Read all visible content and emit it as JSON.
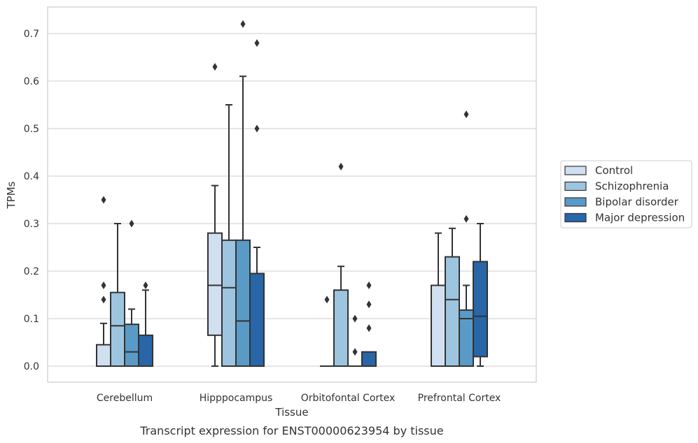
{
  "chart_data": {
    "type": "box",
    "caption": "Transcript expression for ENST00000623954 by tissue",
    "xlabel": "Tissue",
    "ylabel": "TPMs",
    "ylim": [
      -0.035,
      0.76
    ],
    "yticks": [
      0.0,
      0.1,
      0.2,
      0.3,
      0.4,
      0.5,
      0.6,
      0.7
    ],
    "ytick_labels": [
      "0.0",
      "0.1",
      "0.2",
      "0.3",
      "0.4",
      "0.5",
      "0.6",
      "0.7"
    ],
    "grid": "horizontal",
    "legend_position": "outside-right",
    "categories": [
      "Cerebellum",
      "Hipppocampus",
      "Orbitofontal Cortex",
      "Prefrontal Cortex"
    ],
    "series": [
      {
        "name": "Control",
        "color": "#d0e0f0",
        "boxes": [
          {
            "min": 0.0,
            "q1": 0.0,
            "median": 0.0,
            "q3": 0.045,
            "max": 0.09,
            "outliers": [
              0.14,
              0.17,
              0.35
            ]
          },
          {
            "min": 0.0,
            "q1": 0.065,
            "median": 0.17,
            "q3": 0.28,
            "max": 0.38,
            "outliers": [
              0.63
            ]
          },
          {
            "min": 0.0,
            "q1": 0.0,
            "median": 0.0,
            "q3": 0.0,
            "max": 0.0,
            "outliers": [
              0.14
            ]
          },
          {
            "min": 0.0,
            "q1": 0.0,
            "median": 0.0,
            "q3": 0.17,
            "max": 0.28,
            "outliers": []
          }
        ]
      },
      {
        "name": "Schizophrenia",
        "color": "#9dc5df",
        "boxes": [
          {
            "min": 0.0,
            "q1": 0.0,
            "median": 0.085,
            "q3": 0.155,
            "max": 0.3,
            "outliers": []
          },
          {
            "min": 0.0,
            "q1": 0.0,
            "median": 0.165,
            "q3": 0.265,
            "max": 0.55,
            "outliers": []
          },
          {
            "min": 0.0,
            "q1": 0.0,
            "median": 0.0,
            "q3": 0.16,
            "max": 0.21,
            "outliers": [
              0.42
            ]
          },
          {
            "min": 0.0,
            "q1": 0.0,
            "median": 0.14,
            "q3": 0.23,
            "max": 0.29,
            "outliers": []
          }
        ]
      },
      {
        "name": "Bipolar disorder",
        "color": "#5a9ac6",
        "boxes": [
          {
            "min": 0.0,
            "q1": 0.0,
            "median": 0.03,
            "q3": 0.088,
            "max": 0.12,
            "outliers": [
              0.3
            ]
          },
          {
            "min": 0.0,
            "q1": 0.0,
            "median": 0.095,
            "q3": 0.265,
            "max": 0.61,
            "outliers": [
              0.72
            ]
          },
          {
            "min": 0.0,
            "q1": 0.0,
            "median": 0.0,
            "q3": 0.0,
            "max": 0.0,
            "outliers": [
              0.03,
              0.1
            ]
          },
          {
            "min": 0.0,
            "q1": 0.0,
            "median": 0.1,
            "q3": 0.118,
            "max": 0.17,
            "outliers": [
              0.31,
              0.53
            ]
          }
        ]
      },
      {
        "name": "Major depression",
        "color": "#2866a8",
        "boxes": [
          {
            "min": 0.0,
            "q1": 0.0,
            "median": 0.0,
            "q3": 0.065,
            "max": 0.16,
            "outliers": [
              0.17
            ]
          },
          {
            "min": 0.0,
            "q1": 0.0,
            "median": 0.0,
            "q3": 0.195,
            "max": 0.25,
            "outliers": [
              0.5,
              0.68
            ]
          },
          {
            "min": 0.0,
            "q1": 0.0,
            "median": 0.0,
            "q3": 0.03,
            "max": 0.03,
            "outliers": [
              0.08,
              0.13,
              0.17
            ]
          },
          {
            "min": 0.0,
            "q1": 0.02,
            "median": 0.105,
            "q3": 0.22,
            "max": 0.3,
            "outliers": []
          }
        ]
      }
    ]
  }
}
